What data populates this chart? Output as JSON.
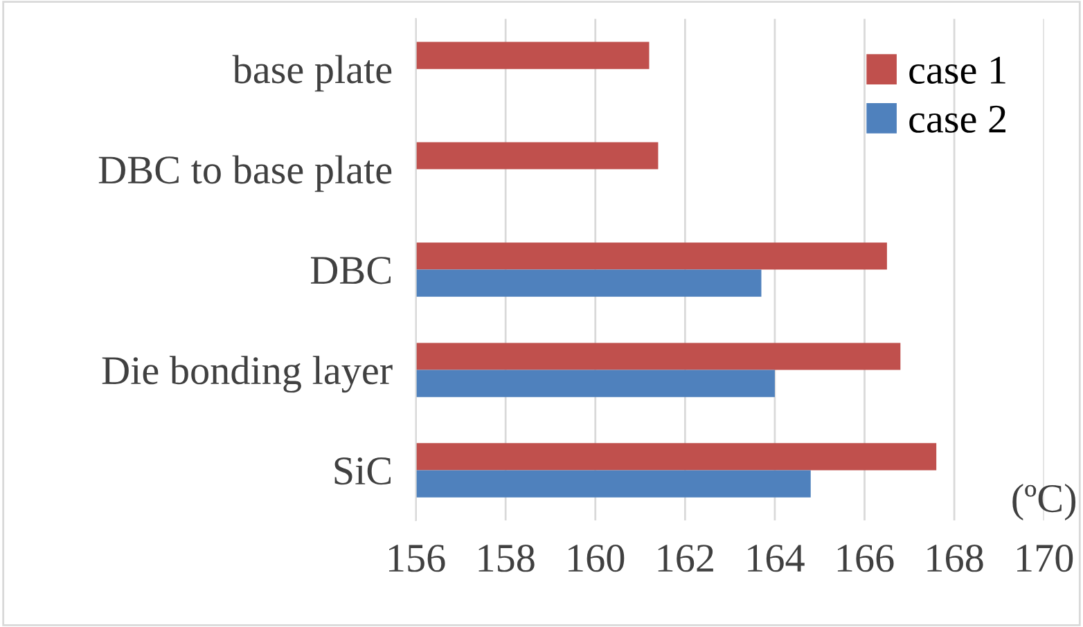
{
  "chart_data": {
    "type": "bar",
    "orientation": "horizontal",
    "xlabel": "(ºC)",
    "categories": [
      "base plate",
      "DBC to base plate",
      "DBC",
      "Die bonding layer",
      "SiC"
    ],
    "series": [
      {
        "name": "case 1",
        "color": "#c0504d",
        "values": [
          161.2,
          161.4,
          166.5,
          166.8,
          167.6
        ]
      },
      {
        "name": "case 2",
        "color": "#4f81bd",
        "values": [
          null,
          null,
          163.7,
          164.0,
          164.8
        ]
      }
    ],
    "xlim": [
      156,
      170
    ],
    "xticks": [
      156,
      158,
      160,
      162,
      164,
      166,
      168,
      170
    ],
    "grid": "x",
    "legend": "top right"
  }
}
